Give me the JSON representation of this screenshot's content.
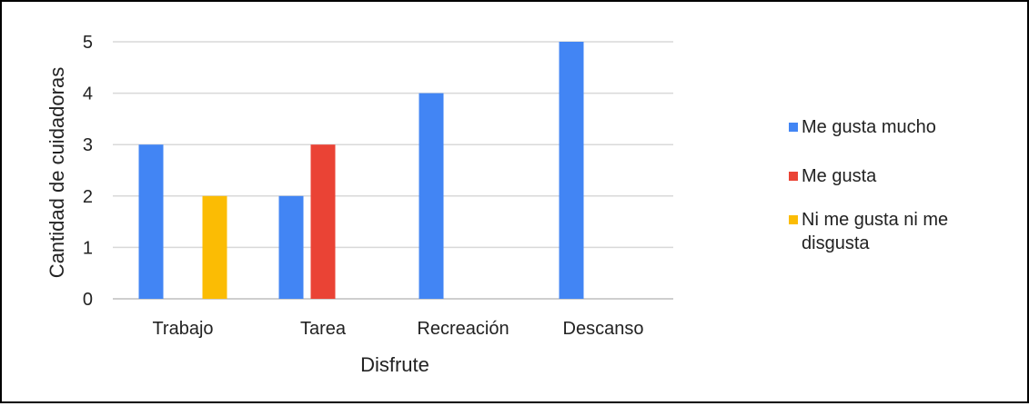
{
  "chart_data": {
    "type": "bar",
    "title": "",
    "xlabel": "Disfrute",
    "ylabel": "Cantidad de cuidadoras",
    "categories": [
      "Trabajo",
      "Tarea",
      "Recreación",
      "Descanso"
    ],
    "ylim": [
      0,
      5
    ],
    "yticks": [
      "0",
      "1",
      "2",
      "3",
      "4",
      "5"
    ],
    "grid": true,
    "legend_position": "right",
    "series": [
      {
        "name": "Me gusta mucho",
        "color": "#4285F4",
        "values": [
          3,
          2,
          4,
          5
        ]
      },
      {
        "name": "Me gusta",
        "color": "#EA4335",
        "values": [
          0,
          3,
          0,
          0
        ]
      },
      {
        "name": "Ni me gusta ni me disgusta",
        "color": "#FBBC04",
        "values": [
          2,
          0,
          0,
          0
        ]
      }
    ]
  }
}
